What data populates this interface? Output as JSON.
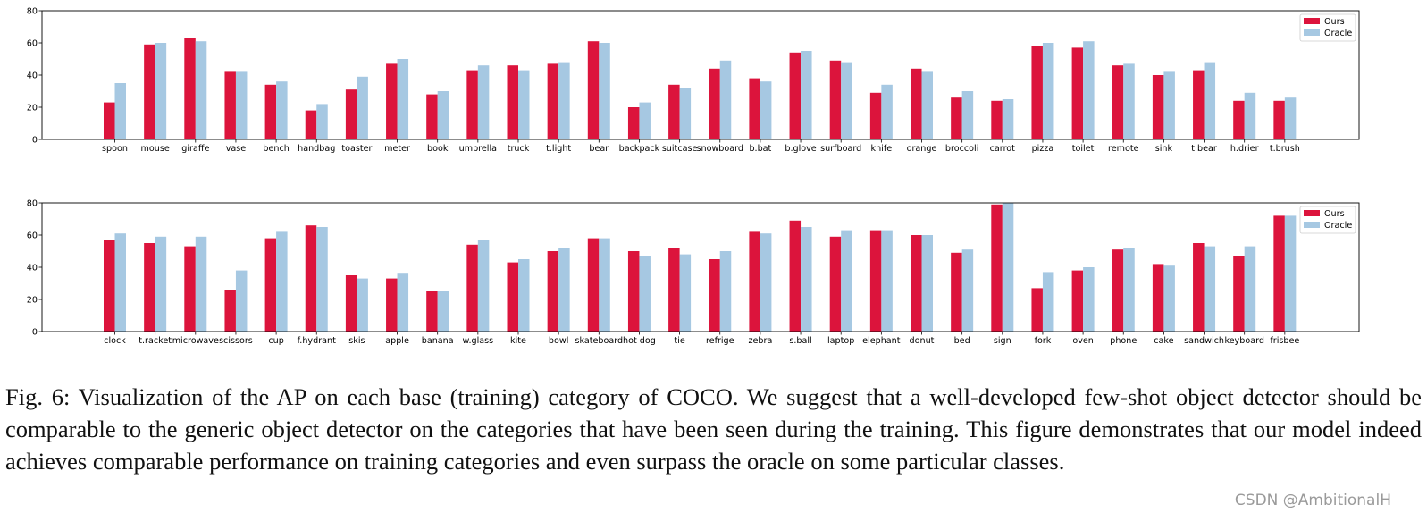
{
  "colors": {
    "ours": "#dc143c",
    "oracle": "#a6c8e2"
  },
  "chart_data": [
    {
      "type": "bar",
      "ylim": [
        0,
        80
      ],
      "yticks": [
        0,
        20,
        40,
        60,
        80
      ],
      "legend_position": "top-right",
      "categories": [
        "spoon",
        "mouse",
        "giraffe",
        "vase",
        "bench",
        "handbag",
        "toaster",
        "meter",
        "book",
        "umbrella",
        "truck",
        "t.light",
        "bear",
        "backpack",
        "suitcase",
        "snowboard",
        "b.bat",
        "b.glove",
        "surfboard",
        "knife",
        "orange",
        "broccoli",
        "carrot",
        "pizza",
        "toilet",
        "remote",
        "sink",
        "t.bear",
        "h.drier",
        "t.brush"
      ],
      "series": [
        {
          "name": "Ours",
          "values": [
            23,
            59,
            63,
            42,
            34,
            18,
            31,
            47,
            28,
            43,
            46,
            47,
            61,
            20,
            34,
            44,
            38,
            54,
            49,
            29,
            44,
            26,
            24,
            58,
            57,
            46,
            40,
            43,
            24,
            24
          ]
        },
        {
          "name": "Oracle",
          "values": [
            35,
            60,
            61,
            42,
            36,
            22,
            39,
            50,
            30,
            46,
            43,
            48,
            60,
            23,
            32,
            49,
            36,
            55,
            48,
            34,
            42,
            30,
            25,
            60,
            61,
            47,
            42,
            48,
            29,
            26
          ]
        }
      ]
    },
    {
      "type": "bar",
      "ylim": [
        0,
        80
      ],
      "yticks": [
        0,
        20,
        40,
        60,
        80
      ],
      "legend_position": "top-right",
      "categories": [
        "clock",
        "t.racket",
        "microwave",
        "scissors",
        "cup",
        "f.hydrant",
        "skis",
        "apple",
        "banana",
        "w.glass",
        "kite",
        "bowl",
        "skateboard",
        "hot dog",
        "tie",
        "refrige",
        "zebra",
        "s.ball",
        "laptop",
        "elephant",
        "donut",
        "bed",
        "sign",
        "fork",
        "oven",
        "phone",
        "cake",
        "sandwich",
        "keyboard",
        "frisbee"
      ],
      "series": [
        {
          "name": "Ours",
          "values": [
            57,
            55,
            53,
            26,
            58,
            66,
            35,
            33,
            25,
            54,
            43,
            50,
            58,
            50,
            52,
            45,
            62,
            69,
            59,
            63,
            60,
            49,
            79,
            27,
            38,
            51,
            42,
            55,
            47,
            72
          ]
        },
        {
          "name": "Oracle",
          "values": [
            61,
            59,
            59,
            38,
            62,
            65,
            33,
            36,
            25,
            57,
            45,
            52,
            58,
            47,
            48,
            50,
            61,
            65,
            63,
            63,
            60,
            51,
            80,
            37,
            40,
            52,
            41,
            53,
            53,
            72
          ]
        }
      ]
    }
  ],
  "caption": "Fig. 6: Visualization of the AP on each base (training) category of COCO. We suggest that a well-developed few-shot object detector should be comparable to the generic object detector on the categories that have been seen during the training. This figure demonstrates that our model indeed achieves comparable performance on training categories and even surpass the oracle on some particular classes.",
  "watermark": "CSDN @AmbitionalH"
}
